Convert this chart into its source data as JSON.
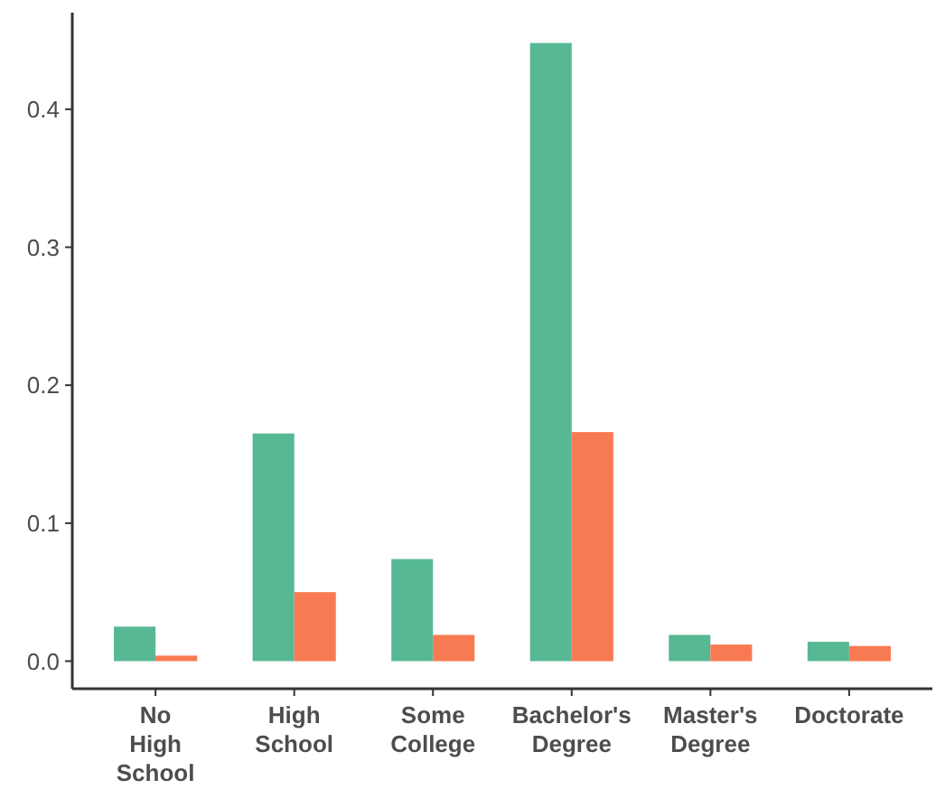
{
  "chart_data": {
    "type": "bar",
    "categories": [
      "No High School",
      "High School",
      "Some College",
      "Bachelor's Degree",
      "Master's Degree",
      "Doctorate"
    ],
    "series": [
      {
        "color": "#57b894",
        "values": [
          0.025,
          0.165,
          0.074,
          0.448,
          0.019,
          0.014
        ]
      },
      {
        "color": "#f87a52",
        "values": [
          0.004,
          0.05,
          0.019,
          0.166,
          0.012,
          0.011
        ]
      }
    ],
    "ylim": [
      -0.02,
      0.47
    ],
    "yticks": [
      {
        "value": 0,
        "label": "0.0"
      },
      0.1,
      0.2,
      0.3,
      0.4
    ],
    "grid": false
  }
}
